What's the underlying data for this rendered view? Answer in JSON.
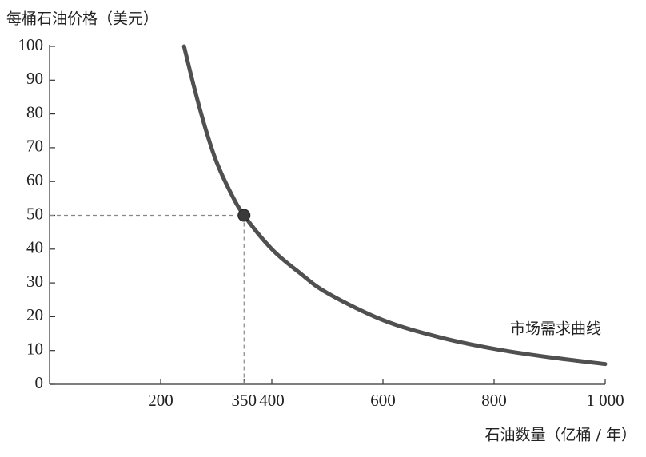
{
  "chart_data": {
    "type": "line",
    "y_label": "每桶石油价格（美元）",
    "x_label": "石油数量（亿桶 / 年）",
    "annotation": "市场需求曲线",
    "xlim": [
      0,
      1000
    ],
    "ylim": [
      0,
      100
    ],
    "xticks": [
      200,
      350,
      400,
      600,
      800,
      {
        "value": 1000,
        "label": "1 000"
      }
    ],
    "yticks": [
      0,
      10,
      20,
      30,
      40,
      50,
      60,
      70,
      80,
      90,
      100
    ],
    "series": [
      {
        "name": "市场需求曲线",
        "color": "#505050",
        "x": [
          242,
          260,
          280,
          300,
          325,
          350,
          400,
          450,
          500,
          600,
          700,
          800,
          900,
          1000
        ],
        "values": [
          100,
          88,
          76,
          66,
          57,
          50,
          40,
          33,
          27,
          19,
          14,
          10.5,
          8,
          6
        ]
      }
    ],
    "highlight": {
      "x": 350,
      "y": 50,
      "color": "#3a3a3a"
    }
  }
}
